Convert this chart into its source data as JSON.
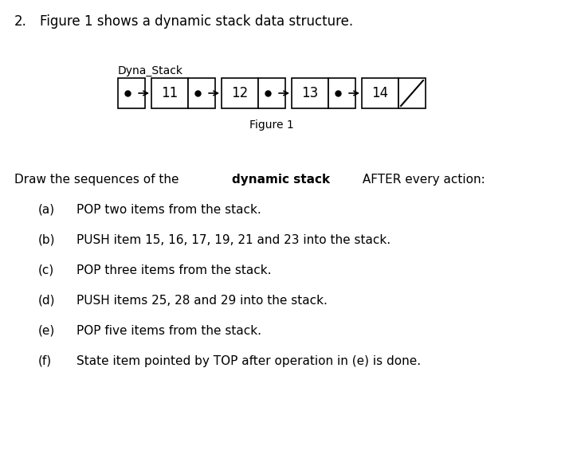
{
  "title_prefix": "2.",
  "title_text": "Figure 1 shows a dynamic stack data structure.",
  "dyna_stack_label": "Dyna_Stack",
  "figure_label": "Figure 1",
  "stack_values": [
    "11",
    "12",
    "13",
    "14"
  ],
  "instruction_normal1": "Draw the sequences of the ",
  "instruction_bold": "dynamic stack",
  "instruction_normal2": " AFTER every action:",
  "items": [
    {
      "label": "(a)",
      "text": "POP two items from the stack."
    },
    {
      "label": "(b)",
      "text": "PUSH item 15, 16, 17, 19, 21 and 23 into the stack."
    },
    {
      "label": "(c)",
      "text": "POP three items from the stack."
    },
    {
      "label": "(d)",
      "text": "PUSH items 25, 28 and 29 into the stack."
    },
    {
      "label": "(e)",
      "text": "POP five items from the stack."
    },
    {
      "label": "(f)",
      "text": "State item pointed by TOP after operation in (e) is done."
    }
  ],
  "bg_color": "#ffffff",
  "text_color": "#000000",
  "box_edge_color": "#000000",
  "font_size_title": 12,
  "font_size_body": 11,
  "font_size_stack": 12,
  "font_size_label": 10
}
